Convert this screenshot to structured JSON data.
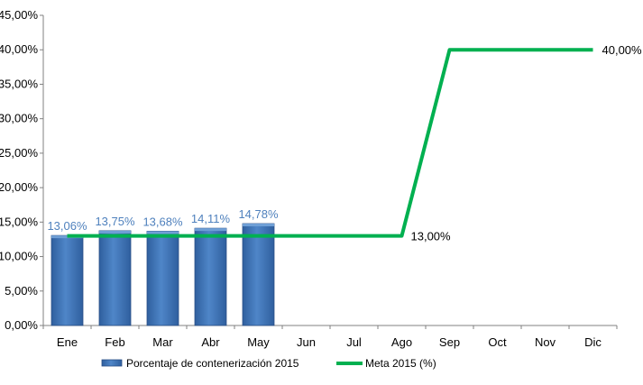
{
  "colors": {
    "bar_fill": "#3f73b7",
    "bar_top": "#6f9fd6",
    "bar_stroke": "#2a4f86",
    "line": "#00b050",
    "bar_label": "#4f81bd",
    "axis": "#808080"
  },
  "chart_data": {
    "type": "bar",
    "categories": [
      "Ene",
      "Feb",
      "Mar",
      "Abr",
      "May",
      "Jun",
      "Jul",
      "Ago",
      "Sep",
      "Oct",
      "Nov",
      "Dic"
    ],
    "ylim": [
      0,
      45
    ],
    "ytick_values": [
      0,
      5,
      10,
      15,
      20,
      25,
      30,
      35,
      40,
      45
    ],
    "ytick_labels": [
      "0,00%",
      "5,00%",
      "10,00%",
      "15,00%",
      "20,00%",
      "25,00%",
      "30,00%",
      "35,00%",
      "40,00%",
      "45,00%"
    ],
    "grid": false,
    "legend_position": "bottom",
    "series": [
      {
        "name": "Porcentaje de contenerización 2015",
        "type": "bar",
        "values": [
          13.06,
          13.75,
          13.68,
          14.11,
          14.78,
          null,
          null,
          null,
          null,
          null,
          null,
          null
        ],
        "labels": [
          "13,06%",
          "13,75%",
          "13,68%",
          "14,11%",
          "14,78%",
          "",
          "",
          "",
          "",
          "",
          "",
          ""
        ]
      },
      {
        "name": "Meta 2015 (%)",
        "type": "line",
        "values": [
          13,
          13,
          13,
          13,
          13,
          13,
          13,
          13,
          40,
          40,
          40,
          40
        ],
        "labels": [
          "",
          "",
          "",
          "",
          "",
          "",
          "",
          "13,00%",
          "",
          "",
          "",
          "40,00%"
        ]
      }
    ]
  }
}
